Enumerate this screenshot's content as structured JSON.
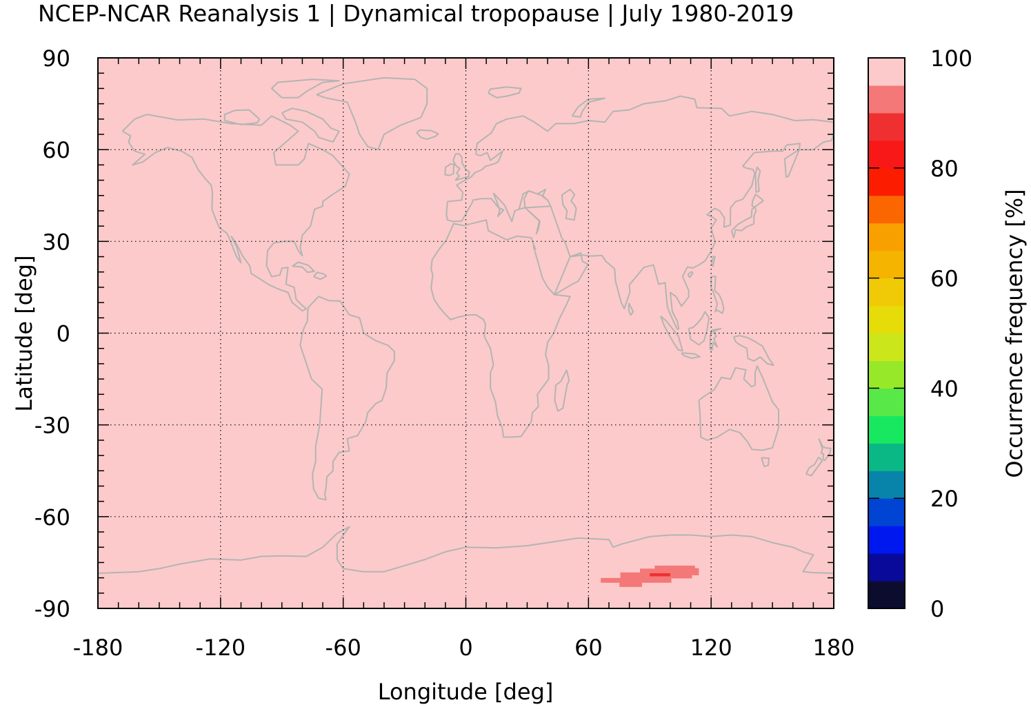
{
  "title": "NCEP-NCAR Reanalysis 1 | Dynamical tropopause | July 1980-2019",
  "chart_data": {
    "type": "heatmap",
    "title": "NCEP-NCAR Reanalysis 1 | Dynamical tropopause | July 1980-2019",
    "xlabel": "Longitude [deg]",
    "ylabel": "Latitude [deg]",
    "colorbar_label": "Occurrence frequency [%]",
    "xlim": [
      -180,
      180
    ],
    "ylim": [
      -90,
      90
    ],
    "xticks": [
      -180,
      -120,
      -60,
      0,
      60,
      120,
      180
    ],
    "yticks": [
      90,
      60,
      30,
      0,
      -30,
      -60,
      -90
    ],
    "xtick_labels": [
      "-180",
      "-120",
      "-60",
      "0",
      "60",
      "120",
      "180"
    ],
    "ytick_labels": [
      "90",
      "60",
      "30",
      "0",
      "-30",
      "-60",
      "-90"
    ],
    "colorbar_ticks": [
      0,
      20,
      40,
      60,
      80,
      100
    ],
    "colorbar_tick_labels": [
      "0",
      "20",
      "40",
      "60",
      "80",
      "100"
    ],
    "colorbar_range": [
      0,
      100
    ],
    "colorbar_colors": [
      "#0c0c2e",
      "#0a0a9a",
      "#0018f0",
      "#0044d4",
      "#0884aa",
      "#0ab885",
      "#18e860",
      "#58e848",
      "#98e82a",
      "#cce61c",
      "#e6dc0a",
      "#f0ca06",
      "#f4b400",
      "#f8a000",
      "#fc6600",
      "#fc1c00",
      "#f81818",
      "#f03030",
      "#f47878",
      "#fccaca"
    ],
    "grid": true,
    "background_value": 97.5,
    "background_color": "#fccaca",
    "anomaly_cells": [
      {
        "lon_range": [
          66,
          114
        ],
        "lat_range": [
          -83,
          -76
        ],
        "value": 92.5,
        "color": "#f47878"
      },
      {
        "lon_range": [
          90,
          100
        ],
        "lat_range": [
          -79.5,
          -78.5
        ],
        "value": 87.5,
        "color": "#f03030"
      }
    ],
    "coastline_color": "#b4b4b4"
  }
}
